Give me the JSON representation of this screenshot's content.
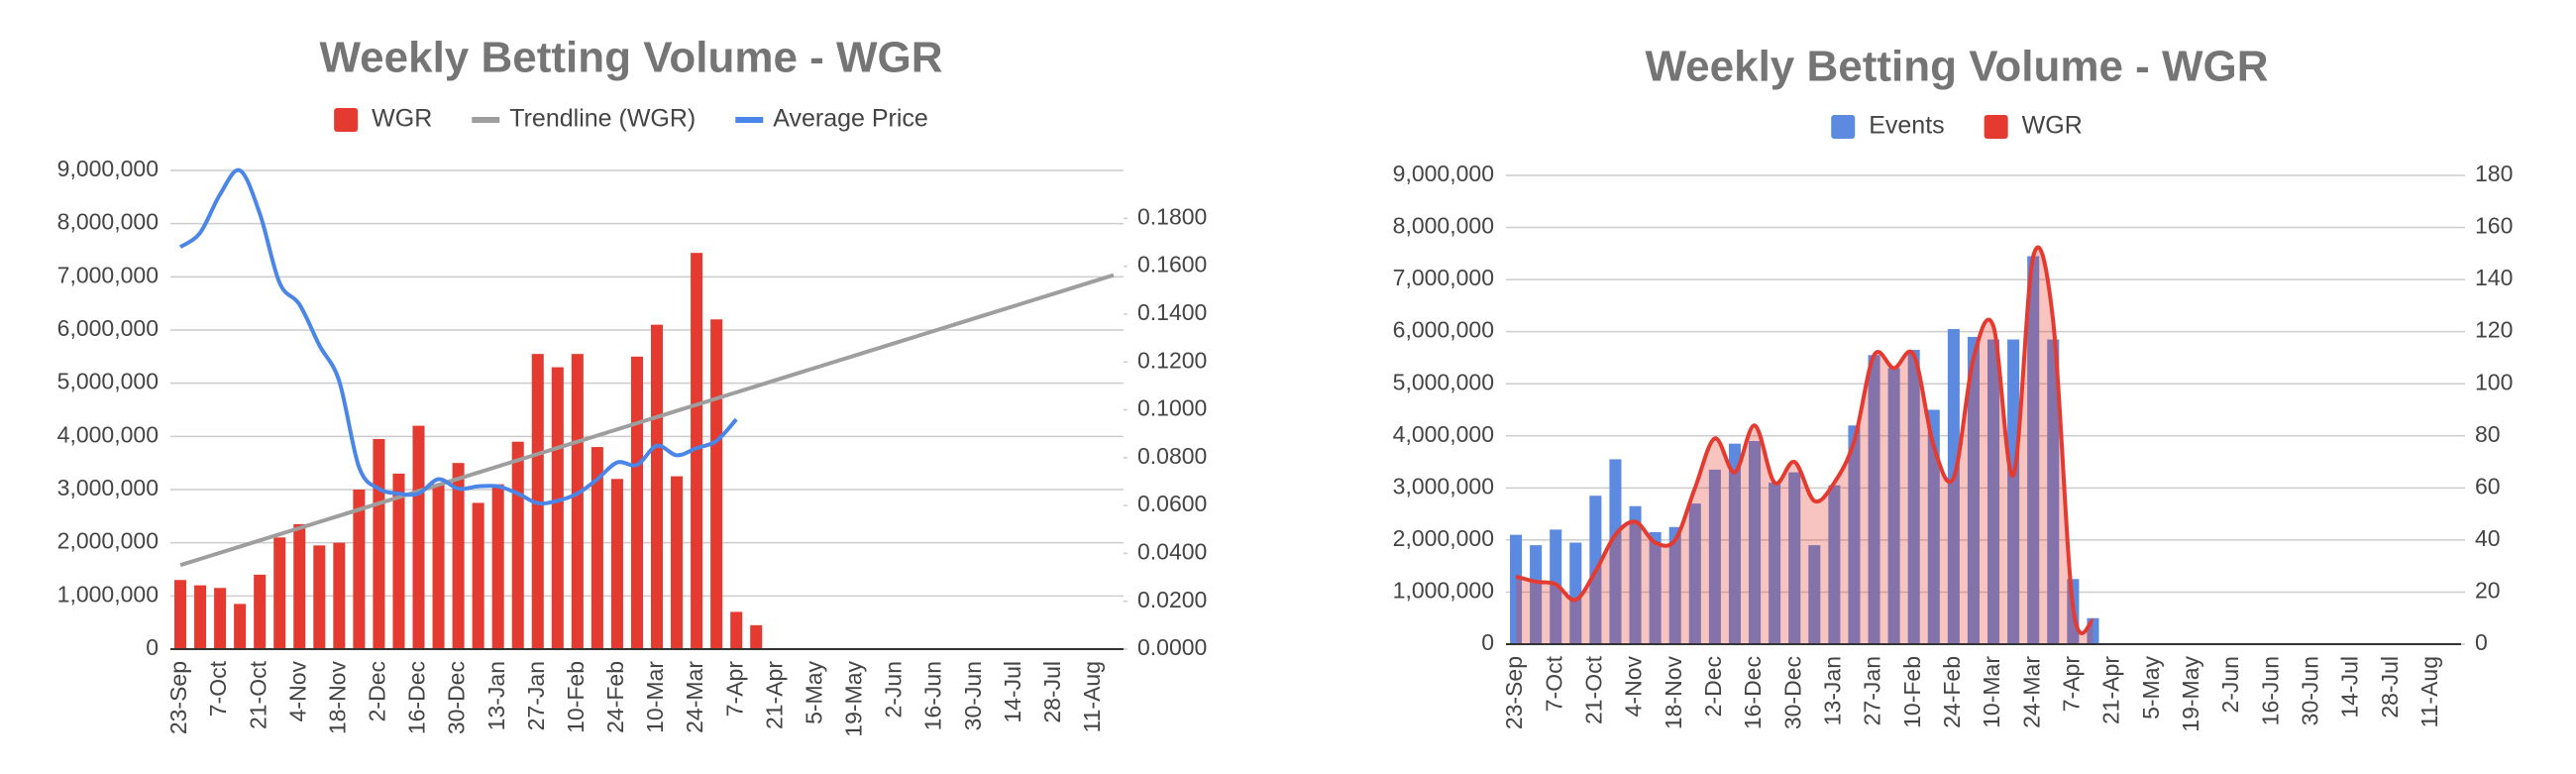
{
  "chart_data": [
    {
      "type": "bar",
      "title": "Weekly Betting Volume - WGR",
      "categories": [
        "23-Sep",
        null,
        "7-Oct",
        null,
        "21-Oct",
        null,
        "4-Nov",
        null,
        "18-Nov",
        null,
        "2-Dec",
        null,
        "16-Dec",
        null,
        "30-Dec",
        null,
        "13-Jan",
        null,
        "27-Jan",
        null,
        "10-Feb",
        null,
        "24-Feb",
        null,
        "10-Mar",
        null,
        "24-Mar",
        null,
        "7-Apr",
        null,
        "21-Apr",
        null,
        "5-May",
        null,
        "19-May",
        null,
        "2-Jun",
        null,
        "16-Jun",
        null,
        "30-Jun",
        null,
        "14-Jul",
        null,
        "28-Jul",
        null,
        "11-Aug",
        null
      ],
      "series": [
        {
          "name": "WGR",
          "type": "bar",
          "color": "#e53a2f",
          "values": [
            1300000,
            1200000,
            1150000,
            850000,
            1400000,
            2100000,
            2350000,
            1950000,
            2000000,
            3000000,
            3950000,
            3300000,
            4200000,
            3100000,
            3500000,
            2750000,
            3100000,
            3900000,
            5550000,
            5300000,
            5550000,
            3800000,
            3200000,
            5500000,
            6100000,
            3250000,
            7450000,
            6200000,
            700000,
            450000,
            null,
            null,
            null,
            null,
            null,
            null,
            null,
            null,
            null,
            null,
            null,
            null,
            null,
            null,
            null,
            null,
            null,
            null
          ]
        },
        {
          "name": "Trendline (WGR)",
          "type": "line",
          "color": "#9e9e9e",
          "values": [
            1580000,
            1696000,
            1812000,
            1928000,
            2044000,
            2160000,
            2276000,
            2392000,
            2508000,
            2624000,
            2740000,
            2856000,
            2972000,
            3088000,
            3204000,
            3320000,
            3436000,
            3552000,
            3668000,
            3784000,
            3900000,
            4016000,
            4132000,
            4248000,
            4364000,
            4480000,
            4596000,
            4712000,
            4828000,
            4944000,
            5060000,
            5176000,
            5292000,
            5408000,
            5524000,
            5640000,
            5756000,
            5872000,
            5988000,
            6104000,
            6220000,
            6336000,
            6452000,
            6568000,
            6684000,
            6800000,
            6916000,
            7032000
          ]
        },
        {
          "name": "Average Price",
          "type": "line",
          "smooth": true,
          "axis": "y2",
          "color": "#4a86e8",
          "values": [
            0.168,
            0.174,
            0.19,
            0.2,
            0.182,
            0.153,
            0.144,
            0.127,
            0.112,
            0.076,
            0.067,
            0.065,
            0.065,
            0.071,
            0.067,
            0.068,
            0.068,
            0.065,
            0.061,
            0.062,
            0.065,
            0.071,
            0.078,
            0.077,
            0.085,
            0.081,
            0.084,
            0.087,
            0.096,
            null,
            null,
            null,
            null,
            null,
            null,
            null,
            null,
            null,
            null,
            null,
            null,
            null,
            null,
            null,
            null,
            null,
            null,
            null
          ]
        }
      ],
      "ylim": [
        0,
        9000000
      ],
      "yticks": [
        0,
        {
          "value": 1000000,
          "label": "1,000,000"
        },
        {
          "value": 2000000,
          "label": "2,000,000"
        },
        {
          "value": 3000000,
          "label": "3,000,000"
        },
        {
          "value": 4000000,
          "label": "4,000,000"
        },
        {
          "value": 5000000,
          "label": "5,000,000"
        },
        {
          "value": 6000000,
          "label": "6,000,000"
        },
        {
          "value": 7000000,
          "label": "7,000,000"
        },
        {
          "value": 8000000,
          "label": "8,000,000"
        },
        {
          "value": 9000000,
          "label": "9,000,000"
        }
      ],
      "y2lim": [
        0,
        0.2
      ],
      "y2ticks": [
        {
          "value": 0,
          "label": "0.0000"
        },
        {
          "value": 0.02,
          "label": "0.0200"
        },
        {
          "value": 0.04,
          "label": "0.0400"
        },
        {
          "value": 0.06,
          "label": "0.0600"
        },
        {
          "value": 0.08,
          "label": "0.0800"
        },
        {
          "value": 0.1,
          "label": "0.1000"
        },
        {
          "value": 0.12,
          "label": "0.1200"
        },
        {
          "value": 0.14,
          "label": "0.1400"
        },
        {
          "value": 0.16,
          "label": "0.1600"
        },
        {
          "value": 0.18,
          "label": "0.1800"
        }
      ],
      "grid": true,
      "legend": "top"
    },
    {
      "type": "bar",
      "title": "Weekly Betting Volume - WGR",
      "categories": [
        "23-Sep",
        null,
        "7-Oct",
        null,
        "21-Oct",
        null,
        "4-Nov",
        null,
        "18-Nov",
        null,
        "2-Dec",
        null,
        "16-Dec",
        null,
        "30-Dec",
        null,
        "13-Jan",
        null,
        "27-Jan",
        null,
        "10-Feb",
        null,
        "24-Feb",
        null,
        "10-Mar",
        null,
        "24-Mar",
        null,
        "7-Apr",
        null,
        "21-Apr",
        null,
        "5-May",
        null,
        "19-May",
        null,
        "2-Jun",
        null,
        "16-Jun",
        null,
        "30-Jun",
        null,
        "14-Jul",
        null,
        "28-Jul",
        null,
        "11-Aug",
        null
      ],
      "series": [
        {
          "name": "Events",
          "type": "bar",
          "axis": "y2",
          "color": "#5b8ae0",
          "values": [
            42,
            38,
            44,
            39,
            57,
            71,
            53,
            43,
            45,
            54,
            67,
            77,
            78,
            62,
            66,
            38,
            61,
            84,
            111,
            106,
            113,
            90,
            121,
            118,
            117,
            117,
            149,
            117,
            25,
            10,
            null,
            null,
            null,
            null,
            null,
            null,
            null,
            null,
            null,
            null,
            null,
            null,
            null,
            null,
            null,
            null,
            null,
            null
          ]
        },
        {
          "name": "WGR",
          "type": "line",
          "smooth": true,
          "area": true,
          "color": "#e53a2f",
          "values": [
            1300000,
            1200000,
            1150000,
            850000,
            1400000,
            2100000,
            2350000,
            1950000,
            2000000,
            3000000,
            3950000,
            3300000,
            4200000,
            3100000,
            3500000,
            2750000,
            3100000,
            3900000,
            5550000,
            5300000,
            5550000,
            3800000,
            3200000,
            5500000,
            6100000,
            3250000,
            7450000,
            6200000,
            700000,
            450000,
            null,
            null,
            null,
            null,
            null,
            null,
            null,
            null,
            null,
            null,
            null,
            null,
            null,
            null,
            null,
            null,
            null,
            null
          ]
        }
      ],
      "ylim": [
        0,
        9000000
      ],
      "yticks": [
        0,
        {
          "value": 1000000,
          "label": "1,000,000"
        },
        {
          "value": 2000000,
          "label": "2,000,000"
        },
        {
          "value": 3000000,
          "label": "3,000,000"
        },
        {
          "value": 4000000,
          "label": "4,000,000"
        },
        {
          "value": 5000000,
          "label": "5,000,000"
        },
        {
          "value": 6000000,
          "label": "6,000,000"
        },
        {
          "value": 7000000,
          "label": "7,000,000"
        },
        {
          "value": 8000000,
          "label": "8,000,000"
        },
        {
          "value": 9000000,
          "label": "9,000,000"
        }
      ],
      "y2lim": [
        0,
        180
      ],
      "y2ticks": [
        0,
        20,
        40,
        60,
        80,
        100,
        120,
        140,
        160,
        180
      ],
      "grid": true,
      "legend": "top"
    }
  ]
}
